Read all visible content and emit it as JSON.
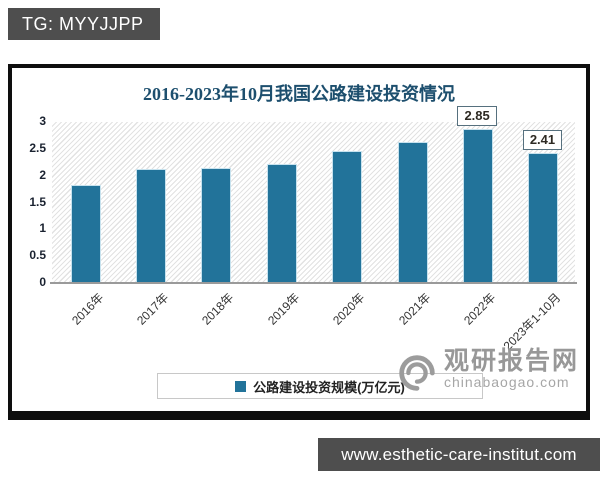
{
  "badge": {
    "label": "TG: MYYJJPP"
  },
  "chart": {
    "title": "2016-2023年10月我国公路建设投资情况",
    "legend": {
      "label": "公路建设投资规模(万亿元)",
      "marker_color": "#22739a"
    },
    "y_ticks_top_to_bottom": [
      "3",
      "2.5",
      "2",
      "1.5",
      "1",
      "0.5",
      "0"
    ],
    "watermark": {
      "name": "观研报告网",
      "domain": "chinabaogao.com"
    },
    "colors": {
      "bar": "#22739a",
      "bar_border": "#c7e2ee",
      "title": "#1d4f6e",
      "axis_line": "#9a9a9a",
      "gray_bar": "#4e4e4e"
    }
  },
  "chart_data": {
    "type": "bar",
    "title": "2016-2023年10月我国公路建设投资情况",
    "categories": [
      "2016年",
      "2017年",
      "2018年",
      "2019年",
      "2020年",
      "2021年",
      "2022年",
      "2023年1-10月"
    ],
    "values": [
      1.8,
      2.11,
      2.12,
      2.19,
      2.44,
      2.61,
      2.85,
      2.41
    ],
    "data_labels": [
      {
        "category_index": 6,
        "text": "2.85"
      },
      {
        "category_index": 7,
        "text": "2.41"
      }
    ],
    "xlabel": "",
    "ylabel": "",
    "ylim": [
      0,
      3
    ],
    "y_tick_step": 0.5,
    "grid": false,
    "legend": [
      "公路建设投资规模(万亿元)"
    ],
    "legend_position": "bottom"
  },
  "footer": {
    "url": "www.esthetic-care-institut.com"
  }
}
